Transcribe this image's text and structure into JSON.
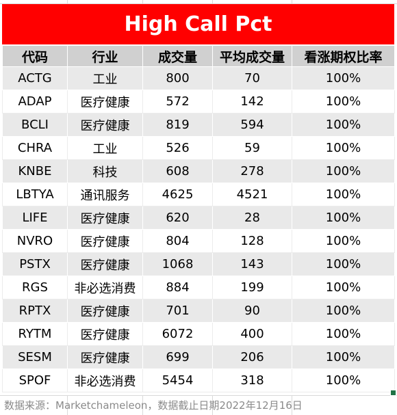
{
  "title": "High Call Pct",
  "columns": [
    "代码",
    "行业",
    "成交量",
    "平均成交量",
    "看涨期权比率"
  ],
  "rows": [
    [
      "ACTG",
      "工业",
      "800",
      "70",
      "100%"
    ],
    [
      "ADAP",
      "医疗健康",
      "572",
      "142",
      "100%"
    ],
    [
      "BCLI",
      "医疗健康",
      "819",
      "594",
      "100%"
    ],
    [
      "CHRA",
      "工业",
      "526",
      "59",
      "100%"
    ],
    [
      "KNBE",
      "科技",
      "608",
      "278",
      "100%"
    ],
    [
      "LBTYA",
      "通讯服务",
      "4625",
      "4521",
      "100%"
    ],
    [
      "LIFE",
      "医疗健康",
      "620",
      "28",
      "100%"
    ],
    [
      "NVRO",
      "医疗健康",
      "804",
      "128",
      "100%"
    ],
    [
      "PSTX",
      "医疗健康",
      "1068",
      "143",
      "100%"
    ],
    [
      "RGS",
      "非必选消费",
      "884",
      "199",
      "100%"
    ],
    [
      "RPTX",
      "医疗健康",
      "701",
      "90",
      "100%"
    ],
    [
      "RYTM",
      "医疗健康",
      "6072",
      "400",
      "100%"
    ],
    [
      "SESM",
      "医疗健康",
      "699",
      "206",
      "100%"
    ],
    [
      "SPOF",
      "非必选消费",
      "5454",
      "318",
      "100%"
    ]
  ],
  "footer": "数据来源：Marketchameleon，数据截止日期2022年12月16日",
  "colors": {
    "title_bg": "#ff0000",
    "title_fg": "#ffffff",
    "header_bg": "#d0d0d0",
    "band_bg": "#e9e9e9",
    "footer_fg": "#8a8a8a"
  }
}
